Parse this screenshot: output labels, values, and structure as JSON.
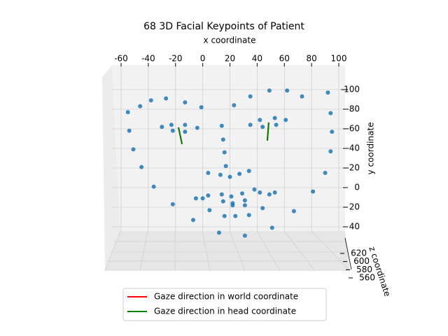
{
  "chart_data": {
    "type": "scatter3d",
    "title": "68 3D Facial Keypoints of Patient",
    "xlabel": "x coordinate",
    "ylabel": "y coordinate",
    "zlabel": "z coordinate",
    "xlim": [
      -60,
      100
    ],
    "xticks": [
      -60,
      -40,
      -20,
      0,
      20,
      40,
      60,
      80,
      100
    ],
    "ylim": [
      -100,
      40
    ],
    "yticks": [
      -100,
      -80,
      -60,
      -40,
      -20,
      0,
      20,
      40
    ],
    "zlim": [
      560,
      620
    ],
    "zticks": [
      560,
      580,
      600,
      620
    ],
    "grid": true,
    "points": {
      "color": "#1f77b4",
      "x": [
        -38,
        -27,
        -13,
        -1,
        -46,
        -55,
        -54,
        -51,
        -45,
        -36,
        -22,
        -7,
        12,
        31,
        51,
        67,
        81,
        90,
        94,
        95,
        94,
        92,
        73,
        62,
        49,
        35,
        23,
        -23,
        -30,
        -22,
        -13,
        -13,
        -4,
        14,
        15,
        16,
        17,
        4,
        13,
        20,
        27,
        34,
        35,
        42,
        44,
        53,
        54,
        61,
        -5,
        0,
        4,
        14,
        21,
        29,
        38,
        42,
        49,
        53,
        44,
        34,
        24,
        16,
        5,
        15,
        22,
        31,
        31,
        22
      ],
      "y": [
        -89,
        -91,
        -87,
        -82,
        -83,
        -77,
        -58,
        -39,
        -21,
        -1,
        17,
        33,
        46,
        49,
        41,
        24,
        4,
        -15,
        -37,
        -57,
        -76,
        -97,
        -93,
        -99,
        -99,
        -93,
        -84,
        -64,
        -62,
        -58,
        -64,
        -57,
        -61,
        -63,
        -49,
        -36,
        -22,
        -15,
        -13,
        -11,
        -14,
        -17,
        -64,
        -69,
        -62,
        -71,
        -64,
        -69,
        11,
        11,
        8,
        7,
        9,
        6,
        2,
        5,
        7,
        5,
        21,
        28,
        29,
        29,
        23,
        14,
        16,
        13,
        18,
        18
      ]
    },
    "gaze": [
      {
        "name": "Gaze direction in world coordinate",
        "color": "#ff0000",
        "segments": [
          {
            "x": [
              -17.8,
              -15.2
            ],
            "y": [
              -61.4,
              -44.3
            ]
          },
          {
            "x": [
              48.5,
              47.5
            ],
            "y": [
              -66.4,
              -47.9
            ]
          }
        ]
      },
      {
        "name": "Gaze direction in head coordinate",
        "color": "#008000",
        "segments": [
          {
            "x": [
              -17.8,
              -15.2
            ],
            "y": [
              -61.4,
              -44.3
            ]
          },
          {
            "x": [
              48.5,
              47.5
            ],
            "y": [
              -66.4,
              -47.9
            ]
          }
        ]
      }
    ]
  }
}
